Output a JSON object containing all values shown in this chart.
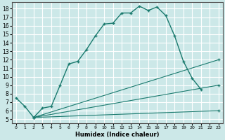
{
  "xlabel": "Humidex (Indice chaleur)",
  "bg_color": "#cce8e8",
  "grid_color": "#ffffff",
  "line_color": "#1a7a6e",
  "xlim": [
    -0.5,
    23.5
  ],
  "ylim": [
    4.5,
    18.8
  ],
  "yticks": [
    5,
    6,
    7,
    8,
    9,
    10,
    11,
    12,
    13,
    14,
    15,
    16,
    17,
    18
  ],
  "xticks": [
    0,
    1,
    2,
    3,
    4,
    5,
    6,
    7,
    8,
    9,
    10,
    11,
    12,
    13,
    14,
    15,
    16,
    17,
    18,
    19,
    20,
    21,
    22,
    23
  ],
  "main_line_x": [
    0,
    1,
    2,
    3,
    4,
    5,
    6,
    7,
    8,
    9,
    10,
    11,
    12,
    13,
    14,
    15,
    16,
    17,
    18,
    19,
    20,
    21
  ],
  "main_line_y": [
    7.5,
    6.5,
    5.2,
    6.3,
    6.5,
    9.0,
    11.5,
    11.8,
    13.2,
    14.8,
    16.2,
    16.3,
    17.5,
    17.5,
    18.3,
    17.8,
    18.2,
    17.2,
    14.8,
    11.8,
    9.8,
    8.5
  ],
  "diag_start_x": 2,
  "diag_start_y": 5.2,
  "diag_end_x": 23,
  "diag1_end_y": 6.0,
  "diag2_end_y": 9.0,
  "diag3_end_y": 12.0,
  "diag_marker_x": 23,
  "xlabel_fontsize": 6,
  "tick_fontsize_x": 4.5,
  "tick_fontsize_y": 5.5,
  "linewidth_main": 1.0,
  "linewidth_diag": 0.8
}
